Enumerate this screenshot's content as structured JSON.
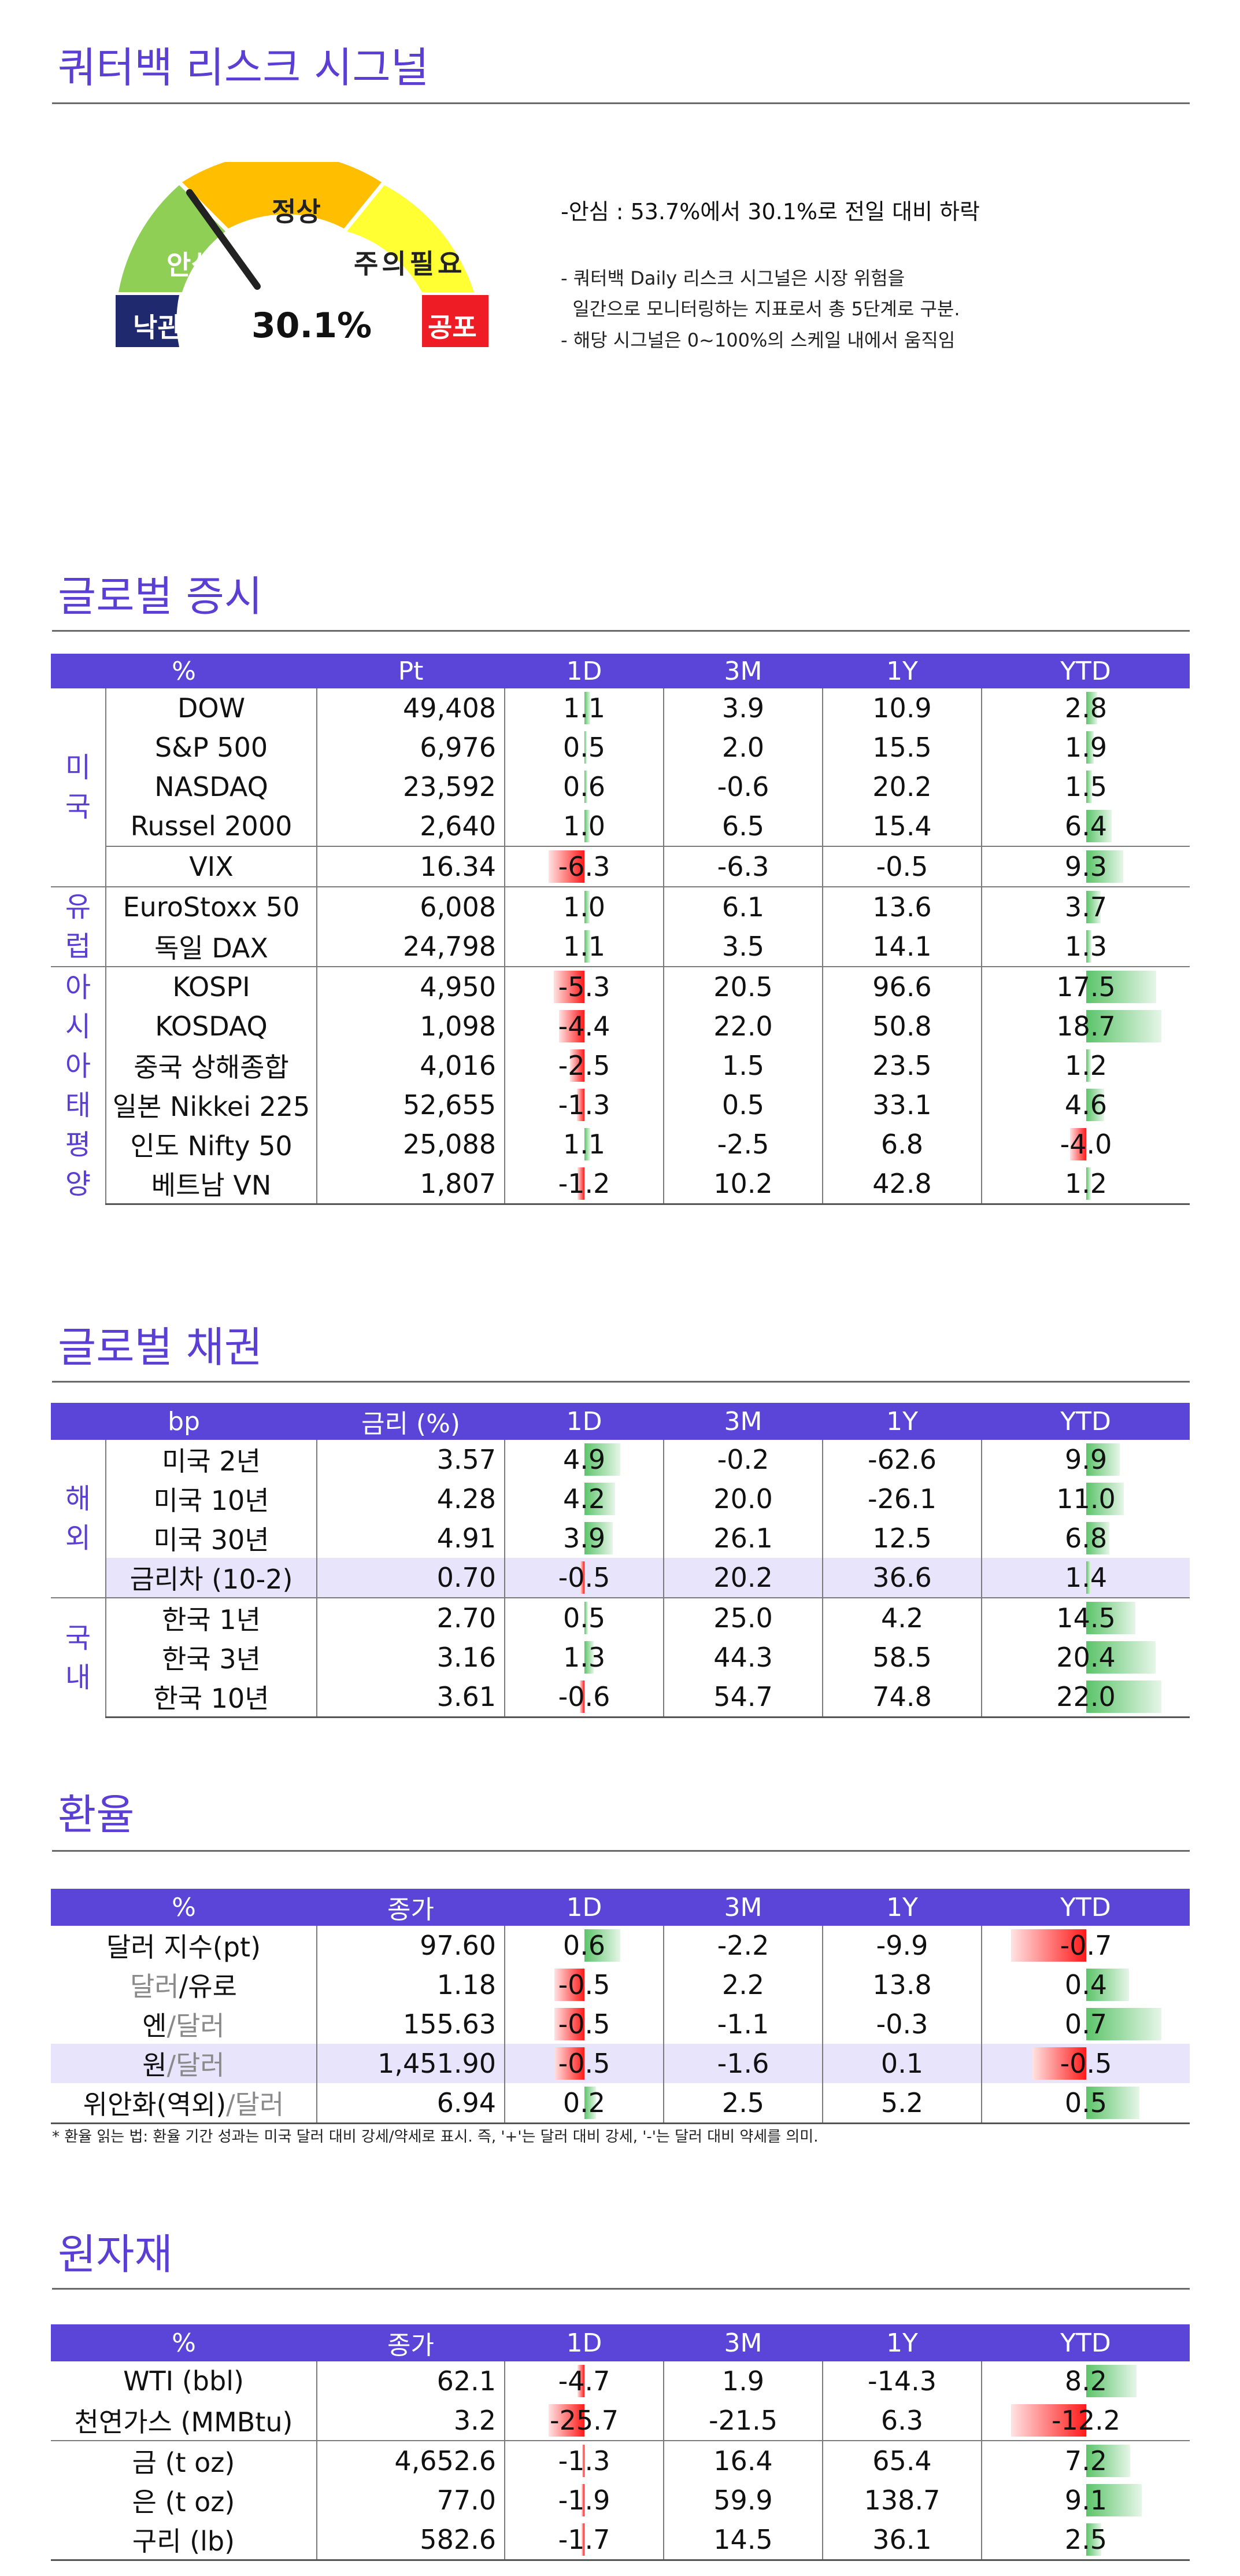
{
  "risk": {
    "title": "쿼터백 리스크 시그널",
    "value_text": "30.1%",
    "value": 30.1,
    "levels": [
      "낙관",
      "안심",
      "정상",
      "주의필요",
      "공포"
    ],
    "level_colors": [
      "#1f2a6e",
      "#8fcf56",
      "#ffbf00",
      "#ffff33",
      "#ee1c25"
    ],
    "summary": "-안심 : 53.7%에서 30.1%로 전일 대비 하락",
    "desc1": "- 쿼터백 Daily 리스크 시그널은 시장 위험을",
    "desc2": "  일간으로 모니터링하는 지표로서 총 5단계로 구분.",
    "desc3": "- 해당 시그널은 0~100%의 스케일 내에서 움직임"
  },
  "equity": {
    "title": "글로벌 증시",
    "headers": [
      "%",
      "Pt",
      "1D",
      "3M",
      "1Y",
      "YTD"
    ],
    "rows": [
      {
        "region": "미\n국",
        "name": "DOW",
        "pt": "49,408",
        "d1": "1.1",
        "m3": "3.9",
        "y1": "10.9",
        "ytd": "2.8",
        "d1v": 1.1,
        "ytdv": 2.8
      },
      {
        "name": "S&P 500",
        "pt": "6,976",
        "d1": "0.5",
        "m3": "2.0",
        "y1": "15.5",
        "ytd": "1.9",
        "d1v": 0.5,
        "ytdv": 1.9
      },
      {
        "name": "NASDAQ",
        "pt": "23,592",
        "d1": "0.6",
        "m3": "-0.6",
        "y1": "20.2",
        "ytd": "1.5",
        "d1v": 0.6,
        "ytdv": 1.5
      },
      {
        "name": "Russel 2000",
        "pt": "2,640",
        "d1": "1.0",
        "m3": "6.5",
        "y1": "15.4",
        "ytd": "6.4",
        "d1v": 1.0,
        "ytdv": 6.4
      },
      {
        "name": "VIX",
        "pt": "16.34",
        "d1": "-6.3",
        "m3": "-6.3",
        "y1": "-0.5",
        "ytd": "9.3",
        "d1v": -6.3,
        "ytdv": 9.3
      },
      {
        "region": "유\n럽",
        "name": "EuroStoxx 50",
        "pt": "6,008",
        "d1": "1.0",
        "m3": "6.1",
        "y1": "13.6",
        "ytd": "3.7",
        "d1v": 1.0,
        "ytdv": 3.7
      },
      {
        "name": "독일 DAX",
        "pt": "24,798",
        "d1": "1.1",
        "m3": "3.5",
        "y1": "14.1",
        "ytd": "1.3",
        "d1v": 1.1,
        "ytdv": 1.3
      },
      {
        "region": "아\n시\n아\n태\n평\n양",
        "name": "KOSPI",
        "pt": "4,950",
        "d1": "-5.3",
        "m3": "20.5",
        "y1": "96.6",
        "ytd": "17.5",
        "d1v": -5.3,
        "ytdv": 17.5
      },
      {
        "name": "KOSDAQ",
        "pt": "1,098",
        "d1": "-4.4",
        "m3": "22.0",
        "y1": "50.8",
        "ytd": "18.7",
        "d1v": -4.4,
        "ytdv": 18.7
      },
      {
        "name": "중국 상해종합",
        "pt": "4,016",
        "d1": "-2.5",
        "m3": "1.5",
        "y1": "23.5",
        "ytd": "1.2",
        "d1v": -2.5,
        "ytdv": 1.2
      },
      {
        "name": "일본 Nikkei 225",
        "pt": "52,655",
        "d1": "-1.3",
        "m3": "0.5",
        "y1": "33.1",
        "ytd": "4.6",
        "d1v": -1.3,
        "ytdv": 4.6
      },
      {
        "name": "인도 Nifty 50",
        "pt": "25,088",
        "d1": "1.1",
        "m3": "-2.5",
        "y1": "6.8",
        "ytd": "-4.0",
        "d1v": 1.1,
        "ytdv": -4.0
      },
      {
        "name": "베트남 VN",
        "pt": "1,807",
        "d1": "-1.2",
        "m3": "10.2",
        "y1": "42.8",
        "ytd": "1.2",
        "d1v": -1.2,
        "ytdv": 1.2
      }
    ]
  },
  "bonds": {
    "title": "글로벌 채권",
    "headers": [
      "bp",
      "금리 (%)",
      "1D",
      "3M",
      "1Y",
      "YTD"
    ],
    "rows": [
      {
        "region": "해\n외",
        "name": "미국 2년",
        "pt": "3.57",
        "d1": "4.9",
        "m3": "-0.2",
        "y1": "-62.6",
        "ytd": "9.9",
        "d1v": 4.9,
        "ytdv": 9.9
      },
      {
        "name": "미국 10년",
        "pt": "4.28",
        "d1": "4.2",
        "m3": "20.0",
        "y1": "-26.1",
        "ytd": "11.0",
        "d1v": 4.2,
        "ytdv": 11.0
      },
      {
        "name": "미국 30년",
        "pt": "4.91",
        "d1": "3.9",
        "m3": "26.1",
        "y1": "12.5",
        "ytd": "6.8",
        "d1v": 3.9,
        "ytdv": 6.8
      },
      {
        "name": "금리차 (10-2)",
        "pt": "0.70",
        "d1": "-0.5",
        "m3": "20.2",
        "y1": "36.6",
        "ytd": "1.4",
        "d1v": -0.5,
        "ytdv": 1.4
      },
      {
        "region": "국\n내",
        "name": "한국 1년",
        "pt": "2.70",
        "d1": "0.5",
        "m3": "25.0",
        "y1": "4.2",
        "ytd": "14.5",
        "d1v": 0.5,
        "ytdv": 14.5
      },
      {
        "name": "한국 3년",
        "pt": "3.16",
        "d1": "1.3",
        "m3": "44.3",
        "y1": "58.5",
        "ytd": "20.4",
        "d1v": 1.3,
        "ytdv": 20.4
      },
      {
        "name": "한국 10년",
        "pt": "3.61",
        "d1": "-0.6",
        "m3": "54.7",
        "y1": "74.8",
        "ytd": "22.0",
        "d1v": -0.6,
        "ytdv": 22.0
      }
    ]
  },
  "fx": {
    "title": "환율",
    "headers": [
      "%",
      "종가",
      "1D",
      "3M",
      "1Y",
      "YTD"
    ],
    "rows": [
      {
        "name_a": "달러 지수(pt)",
        "name_b": "",
        "pt": "97.60",
        "d1": "0.6",
        "m3": "-2.2",
        "y1": "-9.9",
        "ytd": "-0.7",
        "d1v": 0.6,
        "ytdv": -0.7
      },
      {
        "name_a": "달러",
        "name_b": "/유로",
        "pt": "1.18",
        "d1": "-0.5",
        "m3": "2.2",
        "y1": "13.8",
        "ytd": "0.4",
        "d1v": -0.5,
        "ytdv": 0.4
      },
      {
        "name_a": "엔",
        "name_b": "/달러",
        "pt": "155.63",
        "d1": "-0.5",
        "m3": "-1.1",
        "y1": "-0.3",
        "ytd": "0.7",
        "d1v": -0.5,
        "ytdv": 0.7
      },
      {
        "name_a": "원",
        "name_b": "/달러",
        "pt": "1,451.90",
        "d1": "-0.5",
        "m3": "-1.6",
        "y1": "0.1",
        "ytd": "-0.5",
        "d1v": -0.5,
        "ytdv": -0.5
      },
      {
        "name_a": "위안화(역외)",
        "name_b": "/달러",
        "pt": "6.94",
        "d1": "0.2",
        "m3": "2.5",
        "y1": "5.2",
        "ytd": "0.5",
        "d1v": 0.2,
        "ytdv": 0.5
      }
    ],
    "note": "* 환율 읽는 법: 환율 기간 성과는 미국 달러 대비 강세/약세로 표시. 즉, '+'는 달러 대비 강세, '-'는 달러 대비 약세를 의미."
  },
  "commodities": {
    "title": "원자재",
    "headers": [
      "%",
      "종가",
      "1D",
      "3M",
      "1Y",
      "YTD"
    ],
    "rows": [
      {
        "name": "WTI (bbl)",
        "pt": "62.1",
        "d1": "-4.7",
        "m3": "1.9",
        "y1": "-14.3",
        "ytd": "8.2",
        "d1v": -4.7,
        "ytdv": 8.2
      },
      {
        "name": "천연가스 (MMBtu)",
        "pt": "3.2",
        "d1": "-25.7",
        "m3": "-21.5",
        "y1": "6.3",
        "ytd": "-12.2",
        "d1v": -25.7,
        "ytdv": -12.2
      },
      {
        "name": "금 (t oz)",
        "pt": "4,652.6",
        "d1": "-1.3",
        "m3": "16.4",
        "y1": "65.4",
        "ytd": "7.2",
        "d1v": -1.3,
        "ytdv": 7.2
      },
      {
        "name": "은 (t oz)",
        "pt": "77.0",
        "d1": "-1.9",
        "m3": "59.9",
        "y1": "138.7",
        "ytd": "9.1",
        "d1v": -1.9,
        "ytdv": 9.1
      },
      {
        "name": "구리 (lb)",
        "pt": "582.6",
        "d1": "-1.7",
        "m3": "14.5",
        "y1": "36.1",
        "ytd": "2.5",
        "d1v": -1.7,
        "ytdv": 2.5
      }
    ]
  }
}
